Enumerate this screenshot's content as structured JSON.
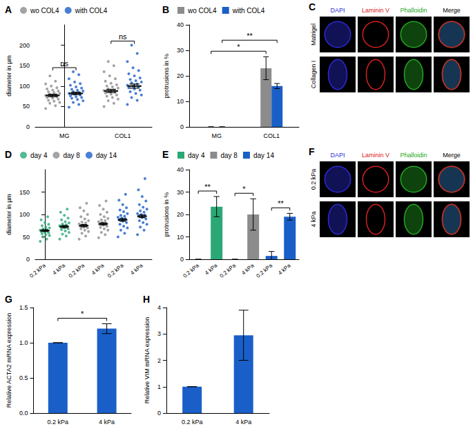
{
  "chart_data": [
    {
      "panel": "A",
      "type": "scatter",
      "categories": [
        "MG",
        "COL1"
      ],
      "ylabel": "diameter in µm",
      "ylim": [
        0,
        250
      ],
      "yticks": [
        0,
        50,
        100,
        150,
        200
      ],
      "grid": false,
      "legend": "top",
      "marker": "circle",
      "series": [
        {
          "name": "wo COL4",
          "color": "#8c8c8c",
          "values": [
            [
              45,
              52,
              58,
              60,
              63,
              65,
              68,
              70,
              72,
              74,
              75,
              77,
              78,
              80,
              82,
              84,
              86,
              88,
              90,
              93,
              96,
              100,
              105,
              112,
              125
            ],
            [
              50,
              58,
              64,
              68,
              72,
              75,
              78,
              80,
              83,
              85,
              87,
              89,
              91,
              93,
              95,
              98,
              100,
              103,
              107,
              112,
              118,
              125,
              135,
              150,
              160
            ]
          ],
          "means": [
            77,
            88
          ],
          "sems": [
            3,
            4
          ]
        },
        {
          "name": "with COL4",
          "color": "#1a5fc8",
          "values": [
            [
              48,
              55,
              60,
              64,
              67,
              70,
              72,
              74,
              76,
              78,
              80,
              82,
              84,
              86,
              88,
              90,
              92,
              95,
              98,
              102,
              106,
              110,
              118,
              128,
              135
            ],
            [
              55,
              65,
              72,
              78,
              82,
              86,
              90,
              93,
              96,
              98,
              100,
              102,
              105,
              108,
              110,
              113,
              116,
              120,
              125,
              130,
              138,
              145,
              160,
              180,
              200
            ]
          ],
          "means": [
            82,
            100
          ],
          "sems": [
            3,
            5
          ]
        }
      ],
      "annotations": [
        {
          "text": "ns",
          "category": "MG"
        },
        {
          "text": "ns",
          "category": "COL1"
        }
      ]
    },
    {
      "panel": "B",
      "type": "bar",
      "categories": [
        "MG",
        "COL1"
      ],
      "ylabel": "protrusions in %",
      "ylim": [
        0,
        40
      ],
      "yticks": [
        0,
        10,
        20,
        30,
        40
      ],
      "grid": false,
      "legend": "top",
      "series": [
        {
          "name": "wo COL4",
          "color": "#8c8c8c",
          "values": [
            0,
            23
          ],
          "errors": [
            0,
            4.5
          ]
        },
        {
          "name": "with COL4",
          "color": "#1a5fc8",
          "values": [
            0,
            16
          ],
          "errors": [
            0,
            1
          ]
        }
      ],
      "annotations": [
        {
          "text": "*",
          "between": [
            0,
            1
          ],
          "series": "wo COL4"
        },
        {
          "text": "**",
          "between": [
            0,
            1
          ],
          "series": "with COL4"
        }
      ]
    },
    {
      "panel": "C",
      "type": "image",
      "columns": [
        "DAPI",
        "Laminin V",
        "Phalloidin",
        "Merge"
      ],
      "column_colors": [
        "#2b2bd6",
        "#d62020",
        "#22a822",
        "#000000"
      ],
      "rows": [
        "Matrigel",
        "Collagen I"
      ]
    },
    {
      "panel": "D",
      "type": "scatter",
      "categories": [
        "0.2 kPa",
        "4 kPa",
        "0.2 kPa",
        "4 kPa",
        "0.2 kPa",
        "4 kPa"
      ],
      "ylabel": "diameter in µm",
      "ylim": [
        0,
        200
      ],
      "yticks": [
        0,
        50,
        100,
        150
      ],
      "grid": false,
      "legend": "top",
      "marker": "circle",
      "series": [
        {
          "name": "day 4",
          "color": "#2aa876",
          "values": [
            [
              40,
              45,
              50,
              53,
              55,
              57,
              59,
              60,
              62,
              63,
              64,
              65,
              66,
              68,
              70,
              72,
              75,
              78,
              82,
              88,
              95
            ],
            [
              45,
              52,
              56,
              60,
              63,
              66,
              68,
              70,
              72,
              73,
              74,
              75,
              77,
              79,
              81,
              84,
              88,
              92,
              98,
              105,
              112
            ],
            null,
            null,
            null,
            null
          ],
          "means": [
            64,
            73,
            null,
            null,
            null,
            null
          ],
          "sems": [
            2,
            2.5,
            null,
            null,
            null,
            null
          ]
        },
        {
          "name": "day 8",
          "color": "#8c8c8c",
          "values": [
            null,
            null,
            [
              45,
              52,
              58,
              62,
              65,
              68,
              70,
              72,
              74,
              75,
              77,
              79,
              81,
              83,
              86,
              90,
              95,
              100,
              108,
              115,
              125
            ],
            [
              48,
              55,
              60,
              65,
              68,
              71,
              74,
              76,
              78,
              80,
              82,
              84,
              86,
              88,
              91,
              95,
              100,
              105,
              112,
              120,
              130
            ],
            null,
            null
          ],
          "means": [
            null,
            null,
            75,
            79,
            null,
            null
          ],
          "sems": [
            null,
            null,
            2.5,
            2.5,
            null,
            null
          ]
        },
        {
          "name": "day 14",
          "color": "#1a5fc8",
          "values": [
            null,
            null,
            null,
            null,
            [
              50,
              58,
              65,
              70,
              74,
              78,
              82,
              85,
              88,
              90,
              92,
              94,
              96,
              98,
              102,
              106,
              110,
              115,
              122,
              132,
              145
            ],
            [
              55,
              65,
              72,
              78,
              82,
              86,
              90,
              93,
              96,
              98,
              100,
              102,
              105,
              108,
              112,
              116,
              122,
              130,
              140,
              155,
              180
            ]
          ],
          "means": [
            null,
            null,
            null,
            null,
            88,
            96
          ],
          "sems": [
            null,
            null,
            null,
            null,
            3,
            3
          ]
        }
      ]
    },
    {
      "panel": "E",
      "type": "bar",
      "categories": [
        "0.2 kPa",
        "4 kPa",
        "0.2 kPa",
        "4 kPa",
        "0.2 kPa",
        "4 kPa"
      ],
      "ylabel": "protrusions in %",
      "ylim": [
        0,
        40
      ],
      "yticks": [
        0,
        10,
        20,
        30,
        40
      ],
      "grid": false,
      "legend": "top",
      "series": [
        {
          "name": "day 4",
          "color": "#2aa876",
          "values": [
            0,
            23.5,
            null,
            null,
            null,
            null
          ],
          "errors": [
            0,
            4.5,
            null,
            null,
            null,
            null
          ]
        },
        {
          "name": "day 8",
          "color": "#8c8c8c",
          "values": [
            null,
            null,
            0,
            20,
            null,
            null
          ],
          "errors": [
            null,
            null,
            0,
            7,
            null,
            null
          ]
        },
        {
          "name": "day 14",
          "color": "#1a5fc8",
          "values": [
            null,
            null,
            null,
            null,
            1.5,
            19
          ],
          "errors": [
            null,
            null,
            null,
            null,
            2,
            1.5
          ]
        }
      ],
      "annotations": [
        {
          "text": "**",
          "between": [
            0,
            1
          ]
        },
        {
          "text": "*",
          "between": [
            2,
            3
          ]
        },
        {
          "text": "**",
          "between": [
            4,
            5
          ]
        }
      ]
    },
    {
      "panel": "F",
      "type": "image",
      "columns": [
        "DAPI",
        "Laminin V",
        "Phalloidin",
        "Merge"
      ],
      "column_colors": [
        "#2b2bd6",
        "#d62020",
        "#22a822",
        "#000000"
      ],
      "rows": [
        "0.2 kPa",
        "4 kPa"
      ]
    },
    {
      "panel": "G",
      "type": "bar",
      "categories": [
        "0.2 kPa",
        "4 kPa"
      ],
      "ylabel": "Relative ACTA2 mRNA expression",
      "ylim": [
        0,
        1.5
      ],
      "yticks": [
        {
          "value": 0,
          "label": "0.0"
        },
        {
          "value": 0.5,
          "label": "0.5"
        },
        {
          "value": 1,
          "label": "1.0"
        },
        {
          "value": 1.5,
          "label": "1.5"
        }
      ],
      "grid": false,
      "color": "#1a5fc8",
      "values": [
        1,
        1.2
      ],
      "errors": [
        0,
        0.07
      ],
      "annotations": [
        {
          "text": "*",
          "between": [
            0,
            1
          ]
        }
      ]
    },
    {
      "panel": "H",
      "type": "bar",
      "categories": [
        "0.2 kPa",
        "4 kPa"
      ],
      "ylabel": "Relative VIM mRNA expression",
      "ylim": [
        0,
        4
      ],
      "yticks": [
        0,
        1,
        2,
        3,
        4
      ],
      "grid": false,
      "color": "#1a5fc8",
      "values": [
        1,
        2.95
      ],
      "errors": [
        0,
        0.95
      ]
    }
  ]
}
